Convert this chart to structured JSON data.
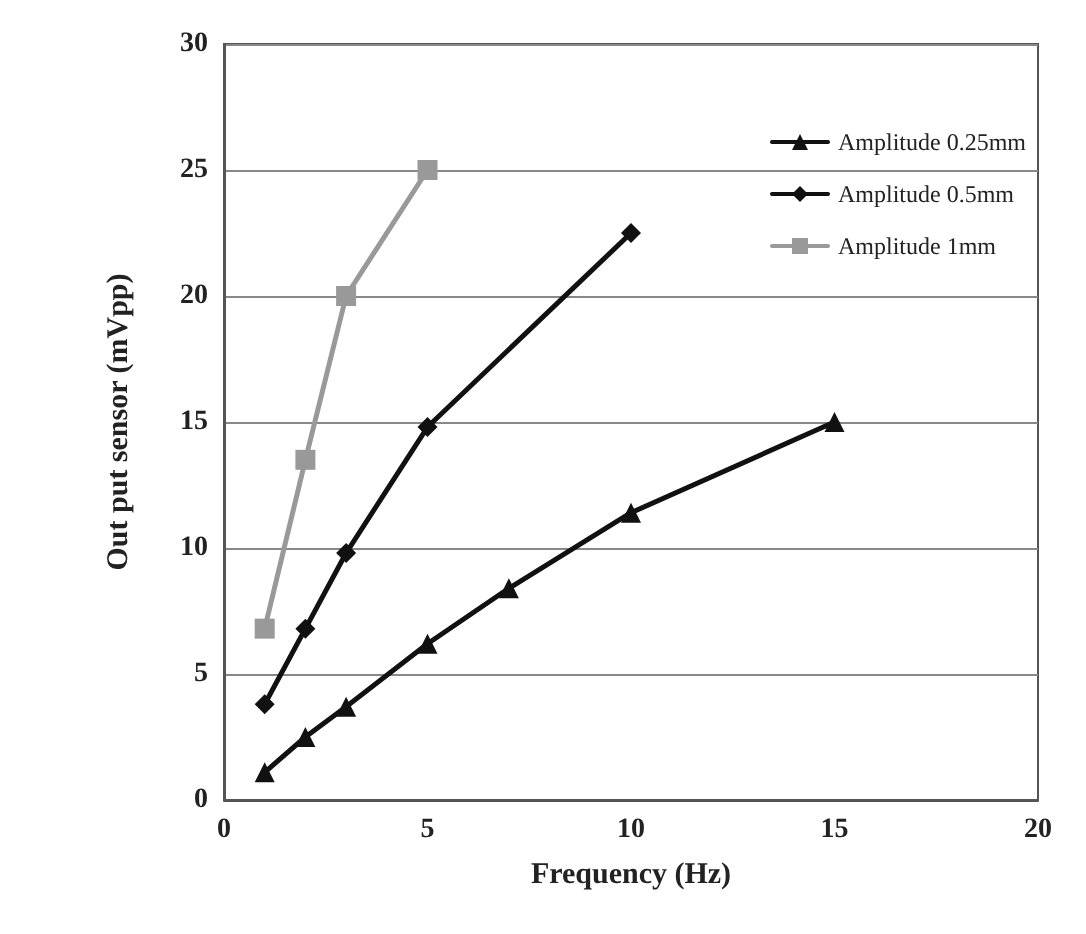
{
  "chart_data": {
    "type": "line",
    "xlabel": "Frequency (Hz)",
    "ylabel": "Out put sensor (mVpp)",
    "xlim": [
      0,
      20
    ],
    "xticks": [
      0,
      5,
      10,
      15,
      20
    ],
    "ylim": [
      0,
      30
    ],
    "yticks": [
      0,
      5,
      10,
      15,
      20,
      25,
      30
    ],
    "grid": "y",
    "legend": "top right",
    "line_style": "solid",
    "series": [
      {
        "name": "Amplitude 0.25mm",
        "color": "#111111",
        "marker": "triangle",
        "x": [
          1,
          2,
          3,
          5,
          7,
          10,
          15
        ],
        "values": [
          1.1,
          2.5,
          3.7,
          6.2,
          8.4,
          11.4,
          15
        ]
      },
      {
        "name": "Amplitude 0.5mm",
        "color": "#111111",
        "marker": "diamond",
        "x": [
          1,
          2,
          3,
          5,
          10
        ],
        "values": [
          3.8,
          6.8,
          9.8,
          14.8,
          22.5
        ]
      },
      {
        "name": "Amplitude 1mm",
        "color": "#999999",
        "marker": "square",
        "x": [
          1,
          2,
          3,
          5
        ],
        "values": [
          6.8,
          13.5,
          20,
          25
        ]
      }
    ]
  }
}
